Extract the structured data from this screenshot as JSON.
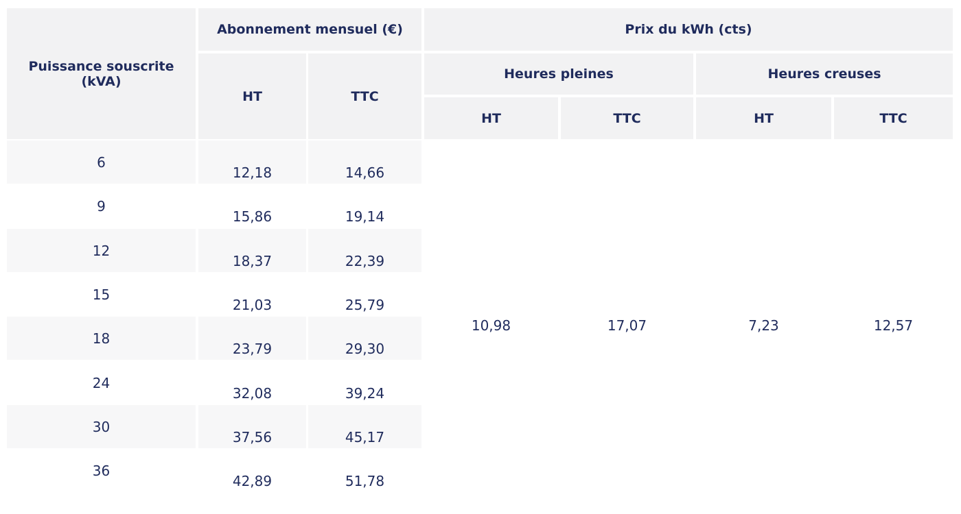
{
  "table": {
    "headers": {
      "power": "Puissance souscrite (kVA)",
      "subscription": "Abonnement mensuel (€)",
      "price": "Prix du kWh (cts)",
      "peak": "Heures pleines",
      "offpeak": "Heures creuses",
      "sub_ht": "HT",
      "sub_ttc": "TTC",
      "peak_ht": "HT",
      "peak_ttc": "TTC",
      "offpeak_ht": "HT",
      "offpeak_ttc": "TTC"
    },
    "rows": [
      [
        "6",
        "12,18",
        "14,66"
      ],
      [
        "9",
        "15,86",
        "19,14"
      ],
      [
        "12",
        "18,37",
        "22,39"
      ],
      [
        "15",
        "21,03",
        "25,79"
      ],
      [
        "18",
        "23,79",
        "29,30"
      ],
      [
        "24",
        "32,08",
        "39,24"
      ],
      [
        "30",
        "37,56",
        "45,17"
      ],
      [
        "36",
        "42,89",
        "51,78"
      ]
    ],
    "prices": [
      "10,98",
      "17,07",
      "7,23",
      "12,57"
    ]
  }
}
